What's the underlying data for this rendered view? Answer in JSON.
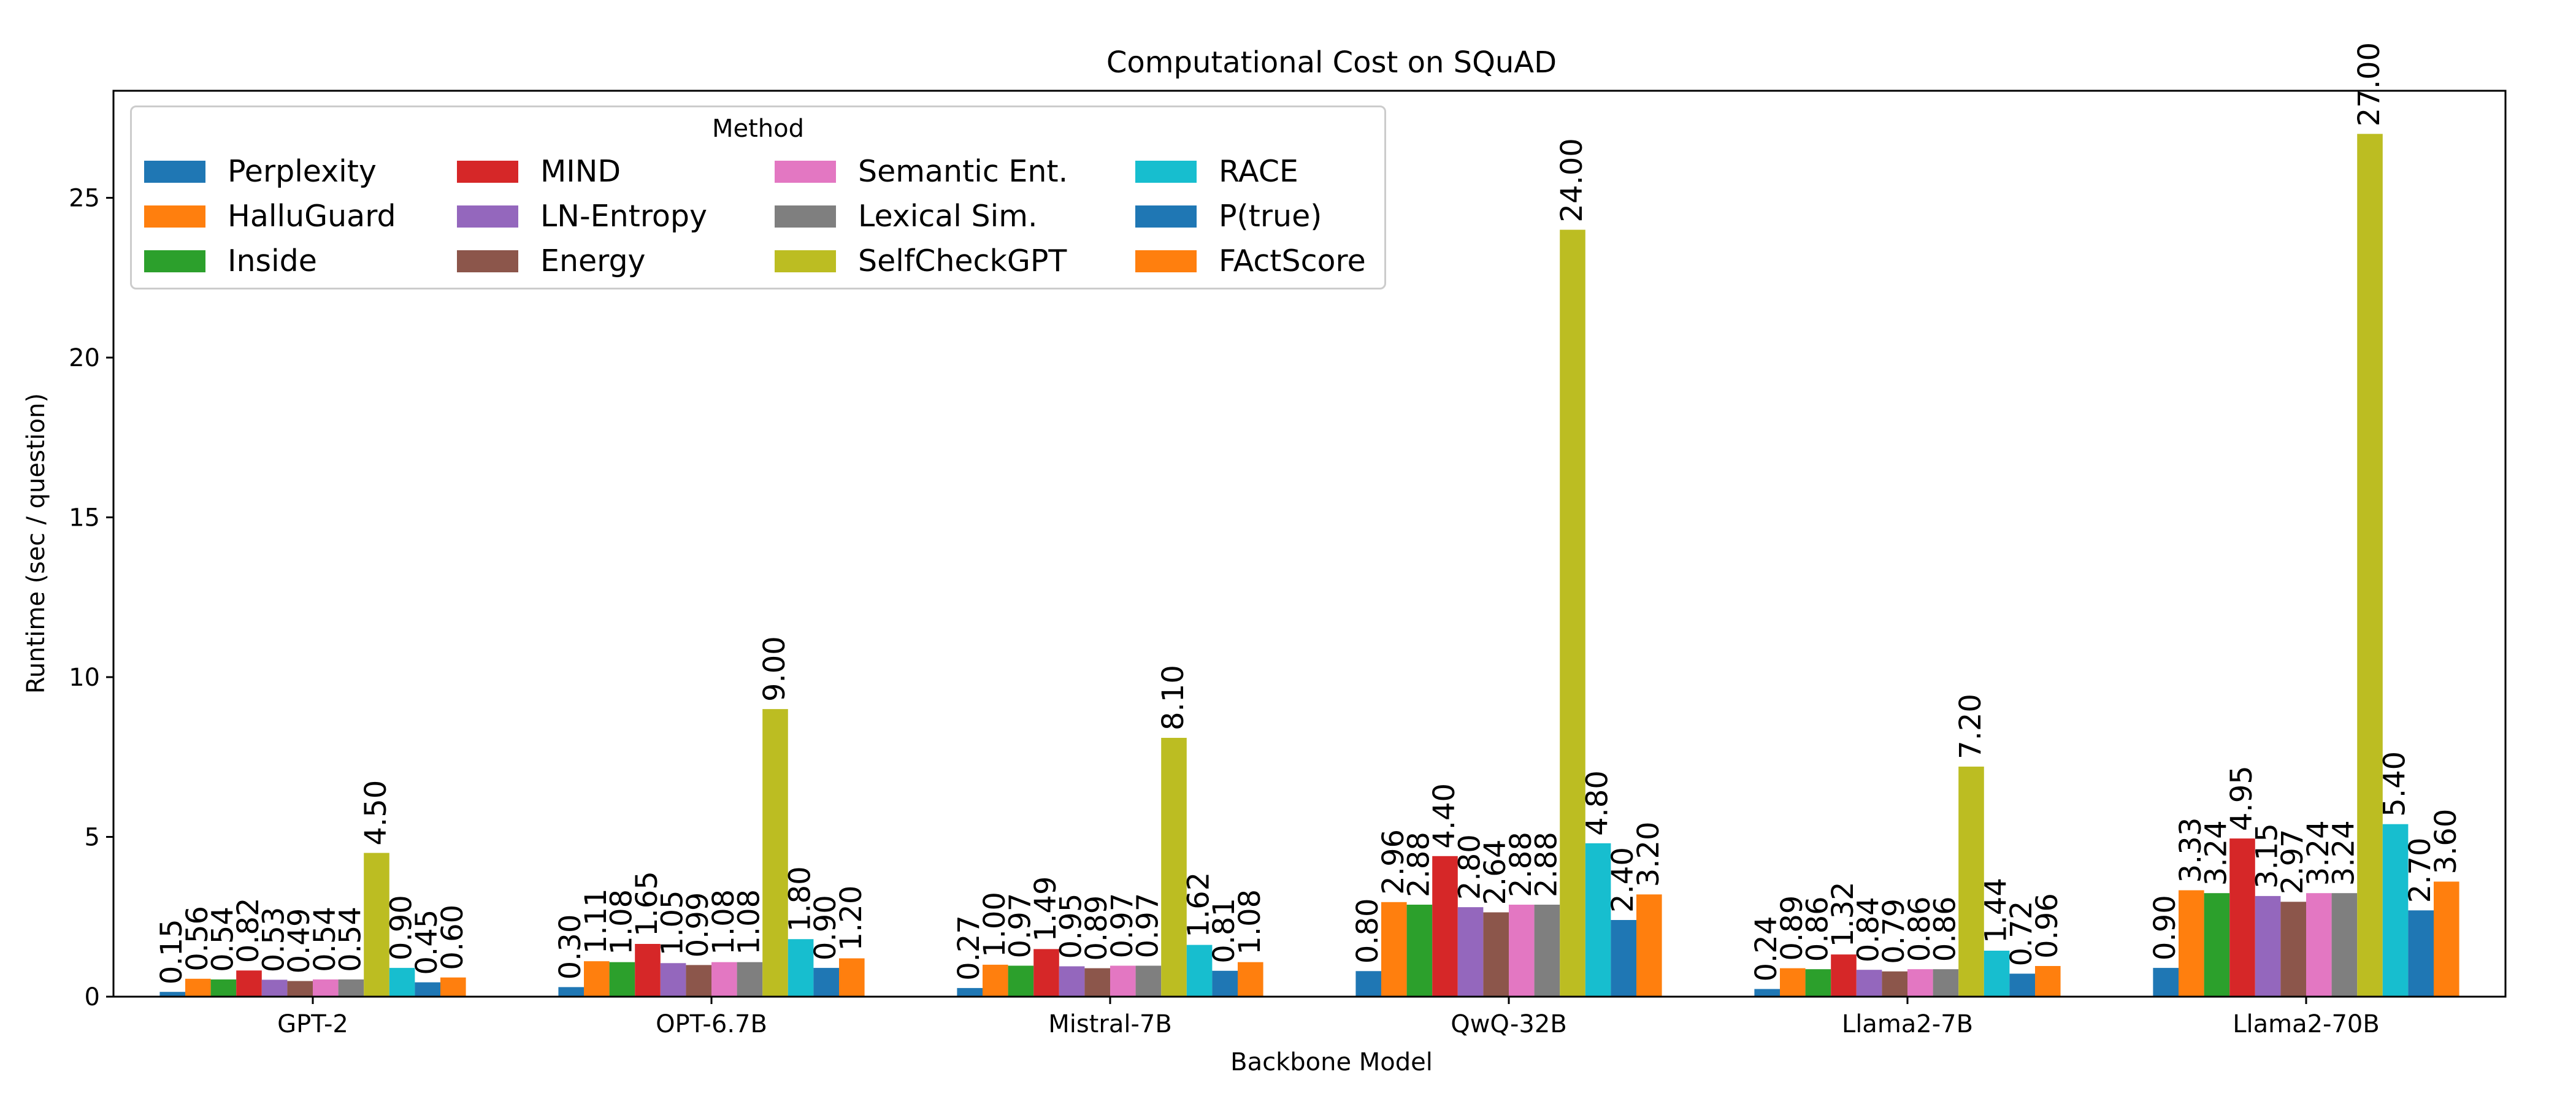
{
  "chart_data": {
    "type": "bar",
    "title": "Computational Cost on SQuAD",
    "xlabel": "Backbone Model",
    "ylabel": "Runtime (sec / question)",
    "ylim": [
      0,
      28.35
    ],
    "yticks": [
      0,
      5,
      10,
      15,
      20,
      25
    ],
    "grid": false,
    "legend": {
      "title": "Method",
      "placement": "top-left",
      "columns": 4
    },
    "categories": [
      "GPT-2",
      "OPT-6.7B",
      "Mistral-7B",
      "QwQ-32B",
      "Llama2-7B",
      "Llama2-70B"
    ],
    "series": [
      {
        "name": "Perplexity",
        "color": "#1f77b4",
        "values": [
          0.15,
          0.3,
          0.27,
          0.8,
          0.24,
          0.9
        ],
        "labels": [
          "0.15",
          "0.30",
          "0.27",
          "0.80",
          "0.24",
          "0.90"
        ]
      },
      {
        "name": "HalluGuard",
        "color": "#ff7f0e",
        "values": [
          0.56,
          1.11,
          1.0,
          2.96,
          0.89,
          3.33
        ],
        "labels": [
          "0.56",
          "1.11",
          "1.00",
          "2.96",
          "0.89",
          "3.33"
        ]
      },
      {
        "name": "Inside",
        "color": "#2ca02c",
        "values": [
          0.54,
          1.08,
          0.97,
          2.88,
          0.86,
          3.24
        ],
        "labels": [
          "0.54",
          "1.08",
          "0.97",
          "2.88",
          "0.86",
          "3.24"
        ]
      },
      {
        "name": "MIND",
        "color": "#d62728",
        "values": [
          0.82,
          1.65,
          1.49,
          4.4,
          1.32,
          4.95
        ],
        "labels": [
          "0.82",
          "1.65",
          "1.49",
          "4.40",
          "1.32",
          "4.95"
        ]
      },
      {
        "name": "LN-Entropy",
        "color": "#9467bd",
        "values": [
          0.53,
          1.05,
          0.95,
          2.8,
          0.84,
          3.15
        ],
        "labels": [
          "0.53",
          "1.05",
          "0.95",
          "2.80",
          "0.84",
          "3.15"
        ]
      },
      {
        "name": "Energy",
        "color": "#8c564b",
        "values": [
          0.49,
          0.99,
          0.89,
          2.64,
          0.79,
          2.97
        ],
        "labels": [
          "0.49",
          "0.99",
          "0.89",
          "2.64",
          "0.79",
          "2.97"
        ]
      },
      {
        "name": "Semantic Ent.",
        "color": "#e377c2",
        "values": [
          0.54,
          1.08,
          0.97,
          2.88,
          0.86,
          3.24
        ],
        "labels": [
          "0.54",
          "1.08",
          "0.97",
          "2.88",
          "0.86",
          "3.24"
        ]
      },
      {
        "name": "Lexical Sim.",
        "color": "#7f7f7f",
        "values": [
          0.54,
          1.08,
          0.97,
          2.88,
          0.86,
          3.24
        ],
        "labels": [
          "0.54",
          "1.08",
          "0.97",
          "2.88",
          "0.86",
          "3.24"
        ]
      },
      {
        "name": "SelfCheckGPT",
        "color": "#bcbd22",
        "values": [
          4.5,
          9.0,
          8.1,
          24.0,
          7.2,
          27.0
        ],
        "labels": [
          "4.50",
          "9.00",
          "8.10",
          "24.00",
          "7.20",
          "27.00"
        ]
      },
      {
        "name": "RACE",
        "color": "#17becf",
        "values": [
          0.9,
          1.8,
          1.62,
          4.8,
          1.44,
          5.4
        ],
        "labels": [
          "0.90",
          "1.80",
          "1.62",
          "4.80",
          "1.44",
          "5.40"
        ]
      },
      {
        "name": "P(true)",
        "color": "#1f77b4",
        "values": [
          0.45,
          0.9,
          0.81,
          2.4,
          0.72,
          2.7
        ],
        "labels": [
          "0.45",
          "0.90",
          "0.81",
          "2.40",
          "0.72",
          "2.70"
        ]
      },
      {
        "name": "FActScore",
        "color": "#ff7f0e",
        "values": [
          0.6,
          1.2,
          1.08,
          3.2,
          0.96,
          3.6
        ],
        "labels": [
          "0.60",
          "1.20",
          "1.08",
          "3.20",
          "0.96",
          "3.60"
        ]
      }
    ]
  }
}
